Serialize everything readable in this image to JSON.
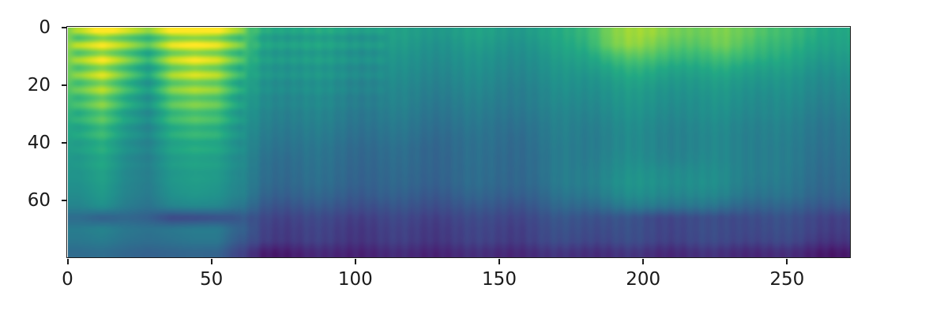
{
  "figure": {
    "background_color": "#ffffff",
    "axis_color": "#1a1a1a",
    "tick_label_color": "#1a1a1a"
  },
  "chart_data": {
    "type": "heatmap",
    "title": "",
    "xlabel": "",
    "ylabel": "",
    "xlim": [
      0,
      272
    ],
    "ylim": [
      80,
      0
    ],
    "y_axis_inverted": true,
    "grid": false,
    "legend": "none",
    "x_ticks": [
      0,
      50,
      100,
      150,
      200,
      250
    ],
    "y_ticks": [
      0,
      20,
      40,
      60
    ],
    "colormap": "viridis",
    "colormap_stops": [
      "#440154",
      "#482475",
      "#414487",
      "#355f8d",
      "#2a788e",
      "#21918c",
      "#22a884",
      "#44bf70",
      "#7ad151",
      "#bddf26",
      "#fde725"
    ],
    "value_scale": "normalized 0-1 colormap intensity read from pixels",
    "grid_shape": {
      "rows": 20,
      "cols": 34,
      "x_extent": 272,
      "y_extent": 80
    },
    "matrix": [
      [
        0.8,
        0.95,
        0.85,
        0.75,
        0.92,
        0.95,
        0.92,
        0.75,
        0.6,
        0.58,
        0.57,
        0.57,
        0.56,
        0.55,
        0.55,
        0.55,
        0.55,
        0.56,
        0.56,
        0.55,
        0.56,
        0.6,
        0.68,
        0.8,
        0.84,
        0.85,
        0.8,
        0.76,
        0.8,
        0.78,
        0.7,
        0.65,
        0.63,
        0.6
      ],
      [
        0.82,
        0.9,
        0.8,
        0.68,
        0.88,
        0.92,
        0.88,
        0.72,
        0.58,
        0.57,
        0.56,
        0.55,
        0.54,
        0.53,
        0.53,
        0.52,
        0.52,
        0.53,
        0.53,
        0.52,
        0.53,
        0.58,
        0.65,
        0.78,
        0.82,
        0.8,
        0.75,
        0.72,
        0.78,
        0.74,
        0.66,
        0.62,
        0.6,
        0.58
      ],
      [
        0.8,
        0.93,
        0.78,
        0.62,
        0.85,
        0.92,
        0.87,
        0.68,
        0.56,
        0.55,
        0.54,
        0.53,
        0.52,
        0.51,
        0.5,
        0.5,
        0.5,
        0.5,
        0.5,
        0.5,
        0.5,
        0.55,
        0.6,
        0.68,
        0.72,
        0.72,
        0.68,
        0.65,
        0.7,
        0.68,
        0.62,
        0.58,
        0.56,
        0.55
      ],
      [
        0.78,
        0.9,
        0.74,
        0.58,
        0.82,
        0.9,
        0.84,
        0.64,
        0.54,
        0.53,
        0.52,
        0.51,
        0.5,
        0.49,
        0.48,
        0.48,
        0.48,
        0.48,
        0.48,
        0.48,
        0.48,
        0.52,
        0.56,
        0.6,
        0.63,
        0.63,
        0.6,
        0.58,
        0.62,
        0.6,
        0.56,
        0.54,
        0.52,
        0.52
      ],
      [
        0.76,
        0.88,
        0.7,
        0.54,
        0.8,
        0.86,
        0.82,
        0.6,
        0.52,
        0.51,
        0.5,
        0.49,
        0.48,
        0.47,
        0.46,
        0.46,
        0.46,
        0.46,
        0.46,
        0.46,
        0.46,
        0.5,
        0.52,
        0.55,
        0.57,
        0.57,
        0.55,
        0.53,
        0.56,
        0.55,
        0.52,
        0.5,
        0.49,
        0.49
      ],
      [
        0.72,
        0.84,
        0.66,
        0.52,
        0.76,
        0.82,
        0.78,
        0.57,
        0.5,
        0.49,
        0.48,
        0.47,
        0.46,
        0.45,
        0.44,
        0.44,
        0.44,
        0.44,
        0.44,
        0.44,
        0.44,
        0.48,
        0.5,
        0.52,
        0.53,
        0.53,
        0.52,
        0.5,
        0.53,
        0.52,
        0.49,
        0.48,
        0.47,
        0.47
      ],
      [
        0.68,
        0.8,
        0.62,
        0.5,
        0.72,
        0.78,
        0.74,
        0.54,
        0.48,
        0.47,
        0.46,
        0.45,
        0.44,
        0.43,
        0.43,
        0.42,
        0.42,
        0.42,
        0.42,
        0.43,
        0.43,
        0.46,
        0.48,
        0.5,
        0.51,
        0.51,
        0.5,
        0.48,
        0.51,
        0.5,
        0.47,
        0.46,
        0.45,
        0.45
      ],
      [
        0.64,
        0.75,
        0.58,
        0.48,
        0.68,
        0.74,
        0.7,
        0.52,
        0.46,
        0.45,
        0.44,
        0.43,
        0.42,
        0.41,
        0.41,
        0.4,
        0.4,
        0.4,
        0.4,
        0.41,
        0.41,
        0.44,
        0.46,
        0.48,
        0.49,
        0.49,
        0.48,
        0.47,
        0.49,
        0.48,
        0.46,
        0.44,
        0.43,
        0.43
      ],
      [
        0.6,
        0.7,
        0.55,
        0.46,
        0.63,
        0.68,
        0.65,
        0.5,
        0.44,
        0.43,
        0.42,
        0.41,
        0.4,
        0.39,
        0.39,
        0.38,
        0.38,
        0.38,
        0.38,
        0.39,
        0.39,
        0.43,
        0.44,
        0.46,
        0.47,
        0.47,
        0.46,
        0.45,
        0.47,
        0.46,
        0.44,
        0.42,
        0.41,
        0.41
      ],
      [
        0.58,
        0.66,
        0.52,
        0.45,
        0.6,
        0.64,
        0.62,
        0.48,
        0.42,
        0.41,
        0.4,
        0.39,
        0.38,
        0.37,
        0.37,
        0.36,
        0.36,
        0.36,
        0.37,
        0.37,
        0.38,
        0.42,
        0.43,
        0.45,
        0.46,
        0.46,
        0.45,
        0.44,
        0.46,
        0.45,
        0.43,
        0.41,
        0.4,
        0.4
      ],
      [
        0.55,
        0.62,
        0.5,
        0.44,
        0.57,
        0.61,
        0.59,
        0.47,
        0.4,
        0.39,
        0.38,
        0.37,
        0.36,
        0.35,
        0.35,
        0.34,
        0.35,
        0.35,
        0.36,
        0.36,
        0.37,
        0.41,
        0.43,
        0.45,
        0.46,
        0.46,
        0.45,
        0.44,
        0.46,
        0.45,
        0.42,
        0.4,
        0.39,
        0.39
      ],
      [
        0.53,
        0.6,
        0.48,
        0.43,
        0.55,
        0.58,
        0.56,
        0.46,
        0.38,
        0.37,
        0.37,
        0.36,
        0.35,
        0.34,
        0.34,
        0.34,
        0.34,
        0.35,
        0.35,
        0.36,
        0.36,
        0.41,
        0.43,
        0.46,
        0.47,
        0.47,
        0.46,
        0.45,
        0.46,
        0.45,
        0.42,
        0.4,
        0.38,
        0.38
      ],
      [
        0.52,
        0.58,
        0.47,
        0.43,
        0.53,
        0.56,
        0.55,
        0.45,
        0.37,
        0.36,
        0.36,
        0.35,
        0.34,
        0.33,
        0.33,
        0.33,
        0.34,
        0.34,
        0.35,
        0.35,
        0.36,
        0.41,
        0.44,
        0.47,
        0.49,
        0.5,
        0.49,
        0.47,
        0.47,
        0.45,
        0.42,
        0.39,
        0.37,
        0.37
      ],
      [
        0.5,
        0.56,
        0.46,
        0.42,
        0.52,
        0.55,
        0.53,
        0.44,
        0.36,
        0.35,
        0.35,
        0.34,
        0.33,
        0.32,
        0.32,
        0.32,
        0.33,
        0.34,
        0.34,
        0.35,
        0.35,
        0.41,
        0.44,
        0.48,
        0.5,
        0.51,
        0.5,
        0.48,
        0.47,
        0.44,
        0.41,
        0.38,
        0.36,
        0.36
      ],
      [
        0.48,
        0.54,
        0.45,
        0.41,
        0.5,
        0.53,
        0.51,
        0.43,
        0.33,
        0.32,
        0.32,
        0.31,
        0.3,
        0.3,
        0.29,
        0.29,
        0.3,
        0.31,
        0.31,
        0.32,
        0.32,
        0.38,
        0.41,
        0.45,
        0.47,
        0.48,
        0.47,
        0.45,
        0.44,
        0.41,
        0.38,
        0.36,
        0.34,
        0.34
      ],
      [
        0.45,
        0.5,
        0.42,
        0.38,
        0.45,
        0.47,
        0.46,
        0.38,
        0.28,
        0.27,
        0.27,
        0.26,
        0.26,
        0.25,
        0.25,
        0.25,
        0.26,
        0.26,
        0.27,
        0.27,
        0.28,
        0.33,
        0.35,
        0.38,
        0.4,
        0.41,
        0.4,
        0.38,
        0.36,
        0.34,
        0.32,
        0.3,
        0.29,
        0.29
      ],
      [
        0.35,
        0.3,
        0.33,
        0.3,
        0.21,
        0.22,
        0.24,
        0.26,
        0.22,
        0.21,
        0.21,
        0.2,
        0.2,
        0.2,
        0.2,
        0.2,
        0.21,
        0.21,
        0.22,
        0.22,
        0.23,
        0.26,
        0.27,
        0.26,
        0.24,
        0.22,
        0.23,
        0.22,
        0.22,
        0.25,
        0.24,
        0.23,
        0.22,
        0.2
      ],
      [
        0.42,
        0.45,
        0.4,
        0.38,
        0.4,
        0.42,
        0.42,
        0.3,
        0.2,
        0.19,
        0.19,
        0.18,
        0.18,
        0.18,
        0.18,
        0.18,
        0.19,
        0.19,
        0.2,
        0.2,
        0.21,
        0.24,
        0.25,
        0.24,
        0.23,
        0.22,
        0.22,
        0.22,
        0.22,
        0.24,
        0.23,
        0.22,
        0.21,
        0.19
      ],
      [
        0.4,
        0.42,
        0.38,
        0.36,
        0.38,
        0.4,
        0.4,
        0.26,
        0.19,
        0.18,
        0.18,
        0.17,
        0.17,
        0.17,
        0.17,
        0.17,
        0.18,
        0.18,
        0.19,
        0.19,
        0.2,
        0.22,
        0.23,
        0.22,
        0.22,
        0.21,
        0.21,
        0.21,
        0.21,
        0.22,
        0.21,
        0.2,
        0.18,
        0.16
      ],
      [
        0.35,
        0.36,
        0.33,
        0.31,
        0.32,
        0.33,
        0.32,
        0.18,
        0.08,
        0.09,
        0.1,
        0.1,
        0.11,
        0.11,
        0.11,
        0.11,
        0.12,
        0.12,
        0.12,
        0.13,
        0.13,
        0.14,
        0.15,
        0.14,
        0.14,
        0.13,
        0.13,
        0.13,
        0.13,
        0.13,
        0.12,
        0.11,
        0.09,
        0.07
      ]
    ],
    "texture": {
      "harmonic_stripes": [
        {
          "x_range": [
            0,
            63
          ],
          "y_range": [
            0,
            56
          ],
          "period": 5.2,
          "phase": 1.0,
          "amplitude": 0.11
        },
        {
          "x_range": [
            63,
            112
          ],
          "y_range": [
            0,
            34
          ],
          "period": 5.2,
          "phase": 1.0,
          "amplitude": 0.05
        }
      ],
      "vertical_bands": [
        {
          "x_start": 58,
          "period": 4.3,
          "amplitude": 0.013
        },
        {
          "x_start": 58,
          "period": 27,
          "amplitude": 0.018
        }
      ]
    }
  }
}
